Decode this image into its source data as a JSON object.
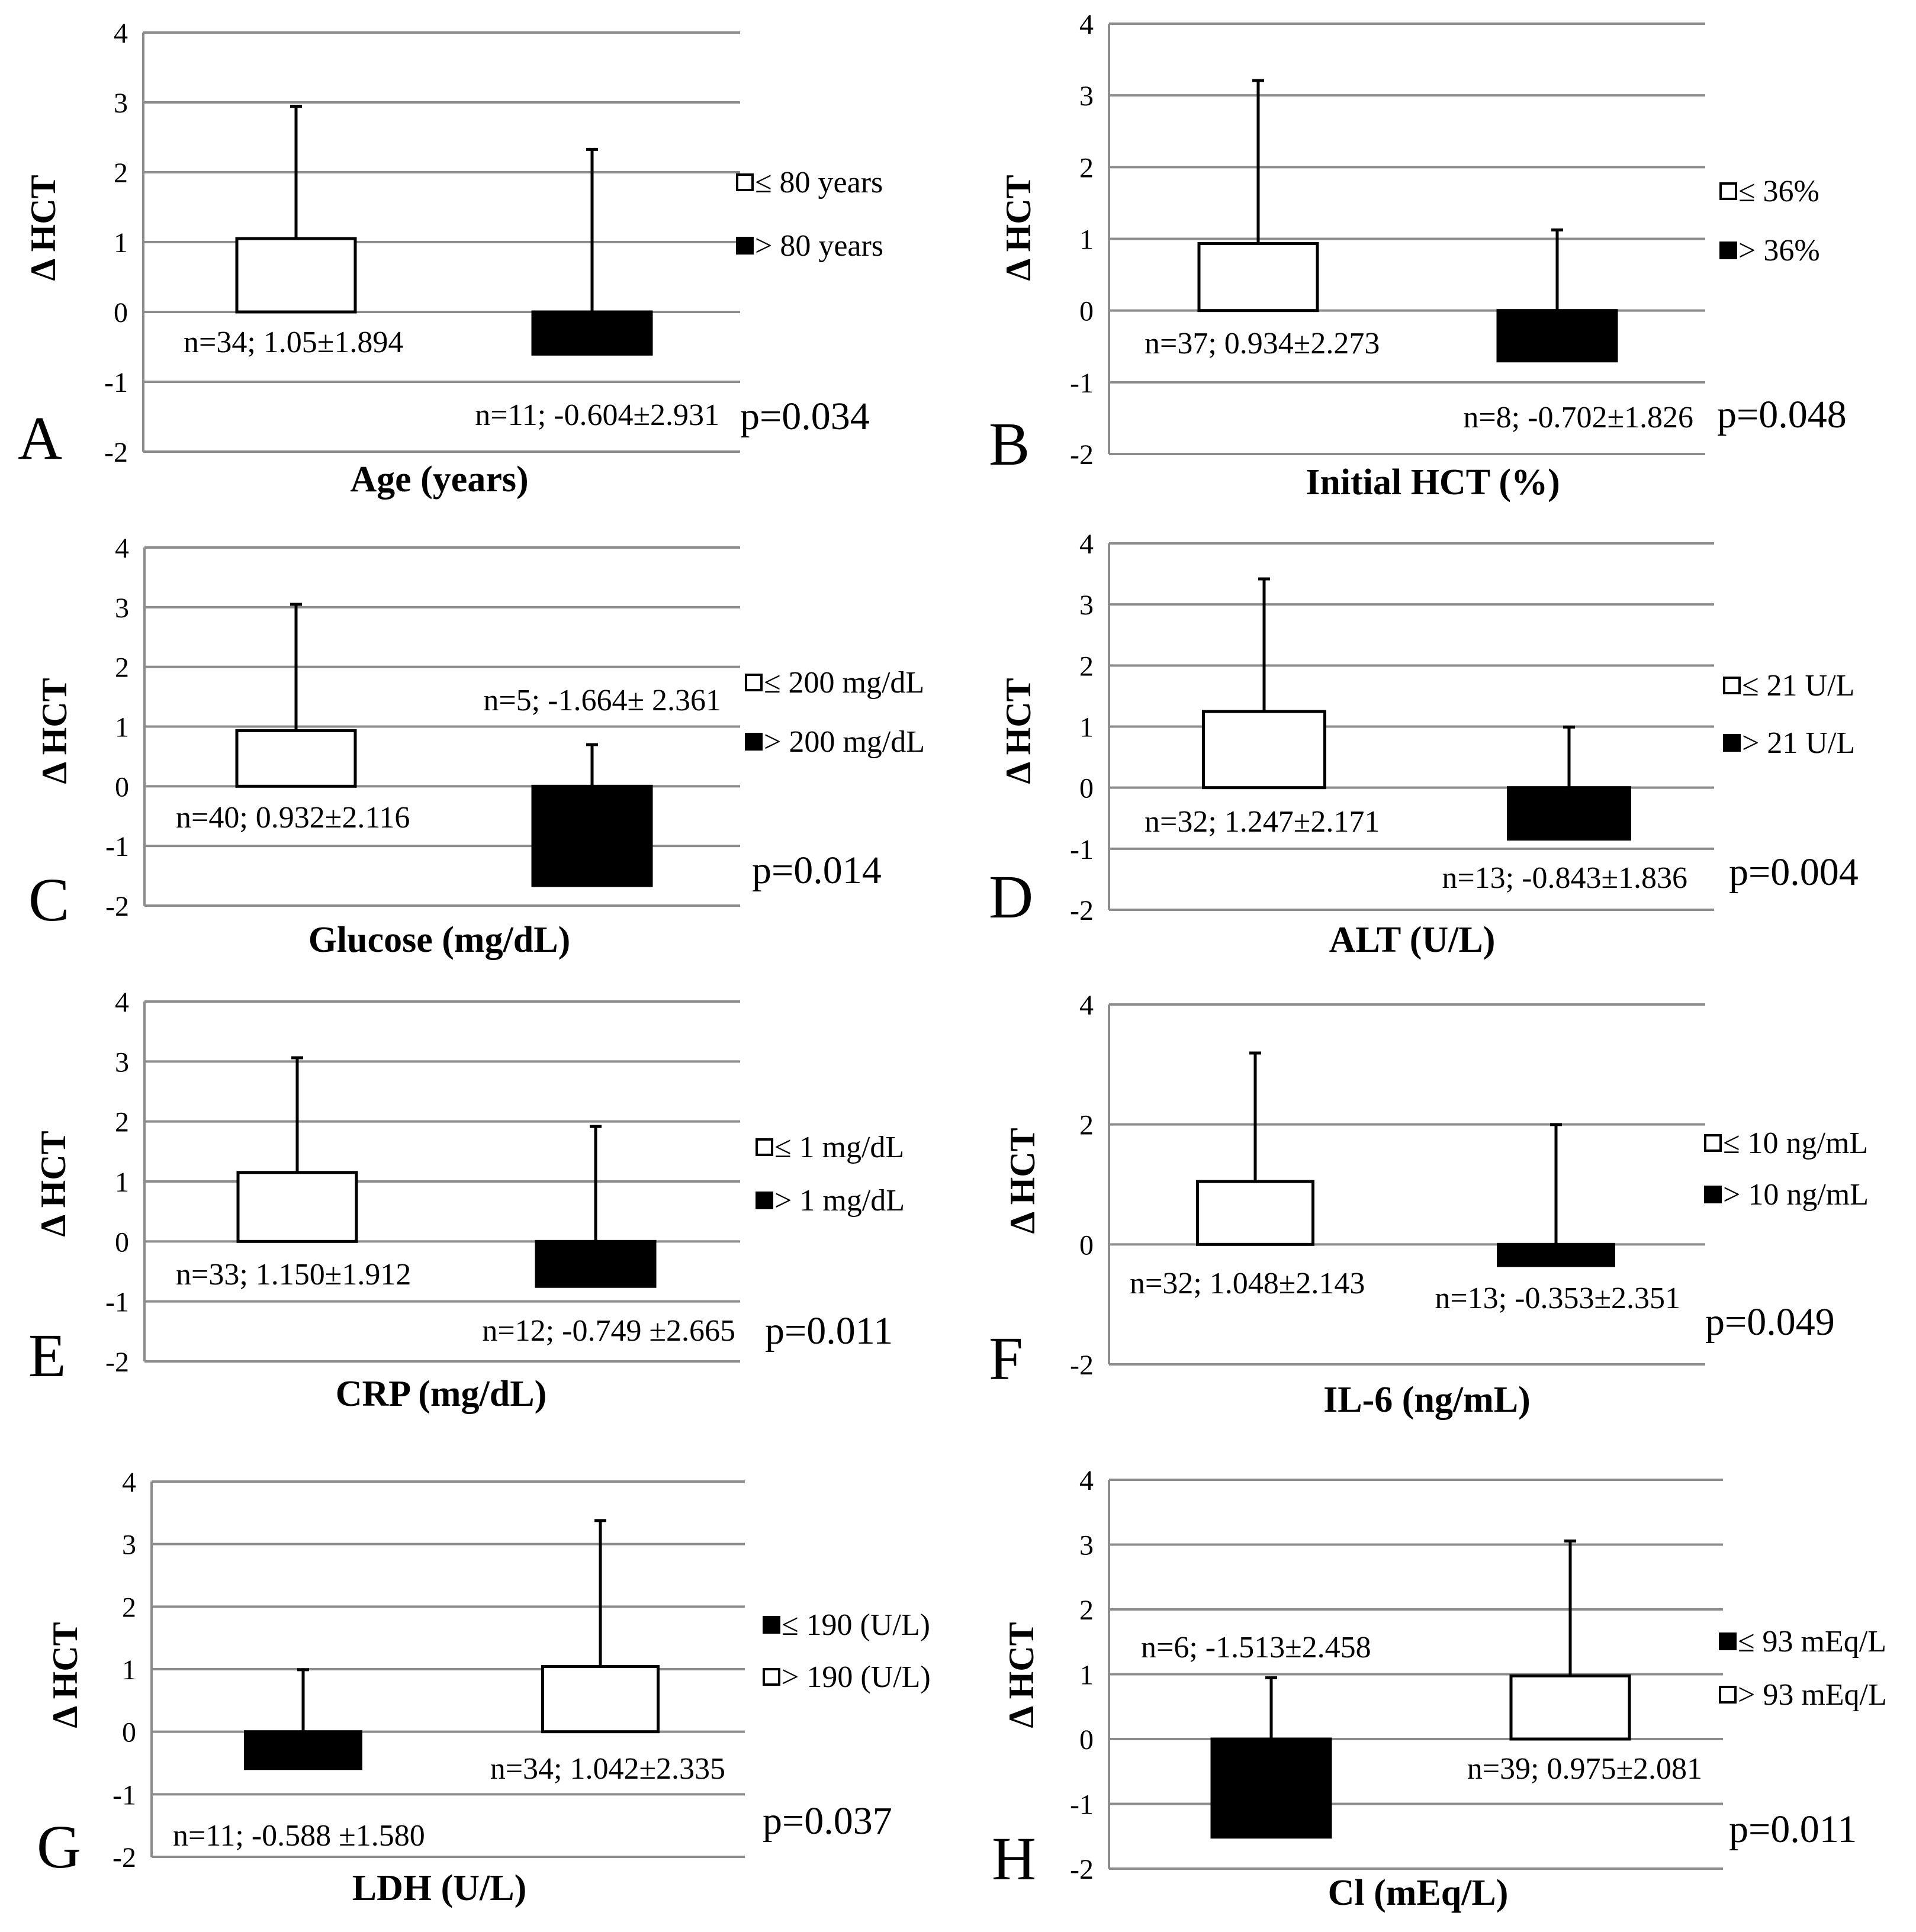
{
  "figure": {
    "ylabel": "Δ HCT"
  },
  "chart_data": [
    {
      "type": "bar",
      "panel": "A",
      "xlabel": "Age (years)",
      "ylabel": "Δ HCT",
      "ylim": [
        -2,
        4
      ],
      "yticks": [
        4,
        3,
        2,
        1,
        0,
        -1,
        -2
      ],
      "grid": true,
      "categories": [
        "≤ 80 years",
        "> 80 years"
      ],
      "series": [
        {
          "name": "≤ 80 years",
          "color": "#ffffff",
          "value": 1.05,
          "error": 1.894,
          "n": 34,
          "label": "n=34; 1.05±1.894"
        },
        {
          "name": "> 80 years",
          "color": "#000000",
          "value": -0.604,
          "error": 2.931,
          "n": 11,
          "label": "n=11; -0.604±2.931"
        }
      ],
      "pvalue": "p=0.034"
    },
    {
      "type": "bar",
      "panel": "B",
      "xlabel": "Initial HCT (%)",
      "ylabel": "Δ HCT",
      "ylim": [
        -2,
        4
      ],
      "yticks": [
        4,
        3,
        2,
        1,
        0,
        -1,
        -2
      ],
      "grid": true,
      "categories": [
        "≤ 36%",
        "> 36%"
      ],
      "series": [
        {
          "name": "≤ 36%",
          "color": "#ffffff",
          "value": 0.934,
          "error": 2.273,
          "n": 37,
          "label": "n=37; 0.934±2.273"
        },
        {
          "name": "> 36%",
          "color": "#000000",
          "value": -0.702,
          "error": 1.826,
          "n": 8,
          "label": "n=8; -0.702±1.826"
        }
      ],
      "pvalue": "p=0.048"
    },
    {
      "type": "bar",
      "panel": "C",
      "xlabel": "Glucose (mg/dL)",
      "ylabel": "Δ HCT",
      "ylim": [
        -2,
        4
      ],
      "yticks": [
        4,
        3,
        2,
        1,
        0,
        -1,
        -2
      ],
      "grid": true,
      "categories": [
        "≤ 200 mg/dL",
        "> 200 mg/dL"
      ],
      "series": [
        {
          "name": "≤ 200 mg/dL",
          "color": "#ffffff",
          "value": 0.932,
          "error": 2.116,
          "n": 40,
          "label": "n=40; 0.932±2.116"
        },
        {
          "name": "> 200 mg/dL",
          "color": "#000000",
          "value": -1.664,
          "error": 2.361,
          "n": 5,
          "label": "n=5; -1.664± 2.361"
        }
      ],
      "pvalue": "p=0.014"
    },
    {
      "type": "bar",
      "panel": "D",
      "xlabel": "ALT (U/L)",
      "ylabel": "Δ HCT",
      "ylim": [
        -2,
        4
      ],
      "yticks": [
        4,
        3,
        2,
        1,
        0,
        -1,
        -2
      ],
      "grid": true,
      "categories": [
        "≤ 21 U/L",
        "> 21 U/L"
      ],
      "series": [
        {
          "name": "≤ 21 U/L",
          "color": "#ffffff",
          "value": 1.247,
          "error": 2.171,
          "n": 32,
          "label": "n=32; 1.247±2.171"
        },
        {
          "name": "> 21 U/L",
          "color": "#000000",
          "value": -0.843,
          "error": 1.836,
          "n": 13,
          "label": "n=13; -0.843±1.836"
        }
      ],
      "pvalue": "p=0.004"
    },
    {
      "type": "bar",
      "panel": "E",
      "xlabel": "CRP (mg/dL)",
      "ylabel": "Δ HCT",
      "ylim": [
        -2,
        4
      ],
      "yticks": [
        4,
        3,
        2,
        1,
        0,
        -1,
        -2
      ],
      "grid": true,
      "categories": [
        "≤ 1 mg/dL",
        "> 1 mg/dL"
      ],
      "series": [
        {
          "name": "≤ 1 mg/dL",
          "color": "#ffffff",
          "value": 1.15,
          "error": 1.912,
          "n": 33,
          "label": "n=33; 1.150±1.912"
        },
        {
          "name": "> 1 mg/dL",
          "color": "#000000",
          "value": -0.749,
          "error": 2.665,
          "n": 12,
          "label": "n=12; -0.749 ±2.665"
        }
      ],
      "pvalue": "p=0.011"
    },
    {
      "type": "bar",
      "panel": "F",
      "xlabel": "IL-6 (ng/mL)",
      "ylabel": "Δ HCT",
      "ylim": [
        -2,
        4
      ],
      "yticks": [
        4,
        2,
        0,
        -2
      ],
      "grid": true,
      "categories": [
        "≤ 10 ng/mL",
        "> 10 ng/mL"
      ],
      "series": [
        {
          "name": "≤ 10 ng/mL",
          "color": "#ffffff",
          "value": 1.048,
          "error": 2.143,
          "n": 32,
          "label": "n=32; 1.048±2.143"
        },
        {
          "name": "> 10 ng/mL",
          "color": "#000000",
          "value": -0.353,
          "error": 2.351,
          "n": 13,
          "label": "n=13; -0.353±2.351"
        }
      ],
      "pvalue": "p=0.049"
    },
    {
      "type": "bar",
      "panel": "G",
      "xlabel": "LDH (U/L)",
      "ylabel": "Δ HCT",
      "ylim": [
        -2,
        4
      ],
      "yticks": [
        4,
        3,
        2,
        1,
        0,
        -1,
        -2
      ],
      "grid": true,
      "categories": [
        "≤ 190 (U/L)",
        "> 190 (U/L)"
      ],
      "series": [
        {
          "name": "≤ 190 (U/L)",
          "color": "#000000",
          "value": -0.588,
          "error": 1.58,
          "n": 11,
          "label": "n=11; -0.588 ±1.580"
        },
        {
          "name": "> 190 (U/L)",
          "color": "#ffffff",
          "value": 1.042,
          "error": 2.335,
          "n": 34,
          "label": "n=34; 1.042±2.335"
        }
      ],
      "pvalue": "p=0.037"
    },
    {
      "type": "bar",
      "panel": "H",
      "xlabel": "Cl (mEq/L)",
      "ylabel": "Δ HCT",
      "ylim": [
        -2,
        4
      ],
      "yticks": [
        4,
        3,
        2,
        1,
        0,
        -1,
        -2
      ],
      "grid": true,
      "categories": [
        "≤ 93 mEq/L",
        "> 93 mEq/L"
      ],
      "series": [
        {
          "name": "≤ 93 mEq/L",
          "color": "#000000",
          "value": -1.513,
          "error": 2.458,
          "n": 6,
          "label": "n=6; -1.513±2.458"
        },
        {
          "name": "> 93 mEq/L",
          "color": "#ffffff",
          "value": 0.975,
          "error": 2.081,
          "n": 39,
          "label": "n=39; 0.975±2.081"
        }
      ],
      "pvalue": "p=0.011"
    }
  ]
}
